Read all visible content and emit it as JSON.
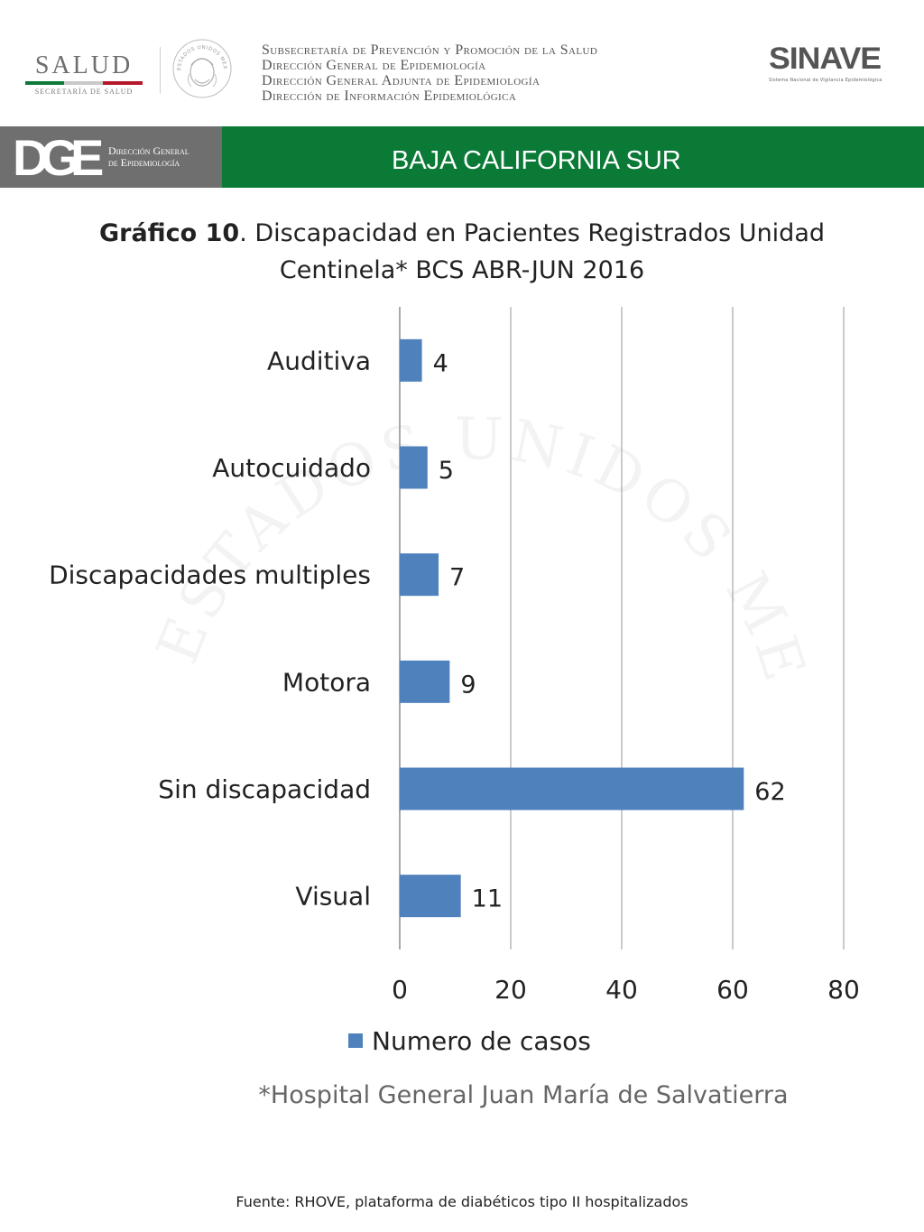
{
  "header": {
    "salud_logo": {
      "word": "SALUD",
      "subtitle": "SECRETARÍA DE SALUD"
    },
    "seal_text": "ESTADOS UNIDOS MEXICANOS",
    "subsecretaria_lines": [
      "Subsecretaría de Prevención y Promoción de la Salud",
      "Dirección General de Epidemiología",
      "Dirección General Adjunta de Epidemiología",
      "Dirección de Información Epidemiológica"
    ],
    "sinave_logo": {
      "word": "SINAVE",
      "subtitle": "Sistema Nacional de Vigilancia Epidemiológica"
    }
  },
  "banner": {
    "dge_mark": "DGE",
    "dge_text_line1": "Dirección General",
    "dge_text_line2": "de Epidemiología",
    "state_name": "BAJA CALIFORNIA SUR",
    "colors": {
      "gray": "#6f6f6f",
      "green": "#0b7a36"
    }
  },
  "title": {
    "bold_part": "Gráfico 10",
    "rest_line1": ". Discapacidad en Pacientes Registrados  Unidad",
    "line2": "Centinela* BCS ABR-JUN 2016"
  },
  "chart_data": {
    "type": "bar",
    "orientation": "horizontal",
    "title": "Gráfico 10. Discapacidad en Pacientes Registrados Unidad Centinela* BCS ABR-JUN 2016",
    "categories": [
      "Auditiva",
      "Autocuidado",
      "Discapacidades multiples",
      "Motora",
      "Sin discapacidad",
      "Visual"
    ],
    "series": [
      {
        "name": "Numero de casos",
        "values": [
          4,
          5,
          7,
          9,
          62,
          11
        ],
        "color": "#4f81bd"
      }
    ],
    "xlim": [
      0,
      80
    ],
    "xticks": [
      0,
      20,
      40,
      60,
      80
    ],
    "xlabel": "",
    "ylabel": "",
    "grid": true,
    "legend_position": "bottom",
    "watermark_text": "ESTADOS UNIDOS MEXICANOS"
  },
  "footnotes": {
    "hospital": "*Hospital General Juan María de Salvatierra",
    "source": "Fuente: RHOVE, plataforma de diabéticos tipo II hospitalizados"
  }
}
